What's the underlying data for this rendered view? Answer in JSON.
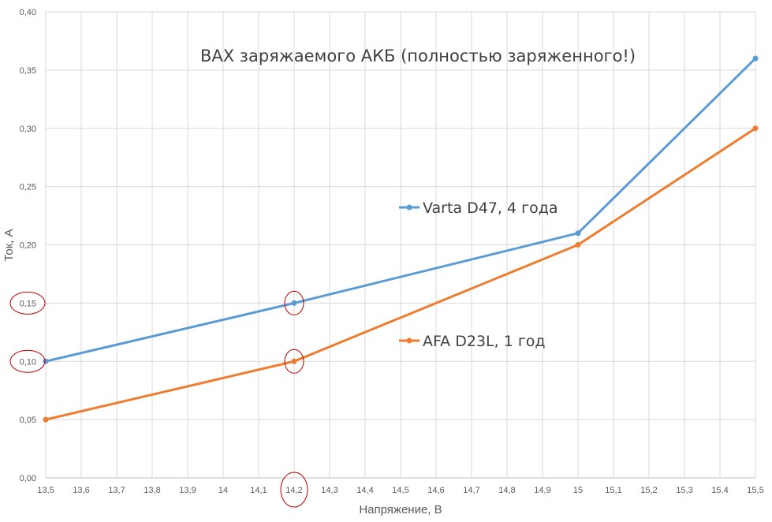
{
  "chart_data": {
    "type": "line",
    "title": "ВАХ заряжаемого АКБ (полностью заряженного!)",
    "xlabel": "Напряжение, В",
    "ylabel": "Ток, А",
    "x_ticks": [
      "13,5",
      "13,6",
      "13,7",
      "13,8",
      "13,9",
      "14",
      "14,1",
      "14,2",
      "14,3",
      "14,4",
      "14,5",
      "14,6",
      "14,7",
      "14,8",
      "14,9",
      "15",
      "15,1",
      "15,2",
      "15,3",
      "15,4",
      "15,5"
    ],
    "y_ticks": [
      "0,00",
      "0,05",
      "0,10",
      "0,15",
      "0,20",
      "0,25",
      "0,30",
      "0,35",
      "0,40"
    ],
    "xlim": [
      13.5,
      15.5
    ],
    "ylim": [
      0,
      0.4
    ],
    "grid": true,
    "series": [
      {
        "name": "Varta D47, 4 года",
        "color": "#5B9BD5",
        "x": [
          13.5,
          14.2,
          15.0,
          15.5
        ],
        "y": [
          0.1,
          0.15,
          0.21,
          0.36
        ]
      },
      {
        "name": "AFA D23L, 1 год",
        "color": "#ED7D31",
        "x": [
          13.5,
          14.2,
          15.0,
          15.5
        ],
        "y": [
          0.05,
          0.1,
          0.2,
          0.3
        ]
      }
    ],
    "annotations": {
      "color": "#C00000",
      "circled_x_ticks": [
        "14,2"
      ],
      "circled_y_ticks": [
        "0,10",
        "0,15"
      ],
      "circled_points": [
        {
          "series": "Varta D47, 4 года",
          "x": 14.2,
          "y": 0.15
        },
        {
          "series": "AFA D23L, 1 год",
          "x": 14.2,
          "y": 0.1
        }
      ]
    }
  }
}
